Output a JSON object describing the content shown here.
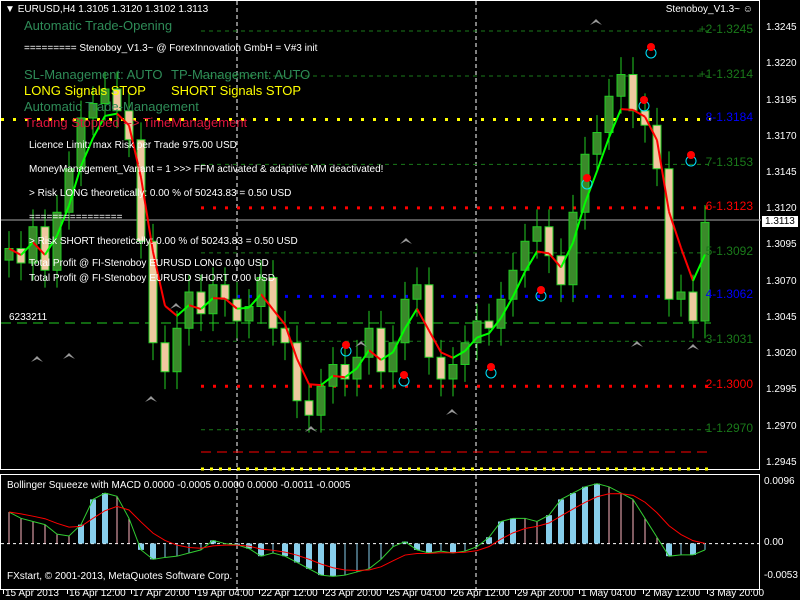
{
  "header": {
    "symbol": "EURUSD,H4",
    "ohlc": "1.3105 1.3120 1.3102 1.3113",
    "ea_name": "Stenoboy_V1.3~"
  },
  "overlay": {
    "trade_opening": "Automatic Trade-Opening",
    "init_line": "========= Stenoboy_V1.3~ @ ForexInnovation GmbH = V#3 init",
    "sl_mgmt": "SL-Management: AUTO",
    "tp_mgmt": "TP-Management: AUTO",
    "long_signals": "LONG Signals STOP",
    "short_signals": "SHORT Signals STOP",
    "trade_mgmt": "Automatic Trade-Management",
    "trading_stopped": "Trading Stopped --> TimeManagement",
    "licence": "Licence Limit: max Risk per Trade 975.00 USD",
    "mm_variant": "MoneyManagement_Variant = 1 >>> FFM activated & adaptive MM deactivated!",
    "risk_long": "> Risk LONG theoretically: 0.00 % of 50243.83 = 0.50 USD",
    "separator": "================",
    "risk_short": "> Risk SHORT theoretically:  0.00 % of 50243.83 = 0.50 USD",
    "profit_long": "Total Profit @ FI-Stenoboy EURUSD LONG   0.00 USD",
    "profit_short": "Total Profit @ FI-Stenoboy EURUSD SHORT 0.00 USD",
    "magic": "6233211"
  },
  "colors": {
    "bull": "#22cc22",
    "bear": "#f0c8a0",
    "green_text": "#2e8b57",
    "yellow": "#ffff00",
    "red": "#ff0000",
    "blue": "#0000ff",
    "macd_hist": "#87ceeb"
  },
  "levels": [
    {
      "label": "+2-1.3245",
      "price": 1.3245,
      "color": "#1a7a1a"
    },
    {
      "label": "+1-1.3214",
      "price": 1.3214,
      "color": "#1a7a1a"
    },
    {
      "label": "8-1.3184",
      "price": 1.3184,
      "color": "#0000ff",
      "line": "#ffff00"
    },
    {
      "label": "7-1.3153",
      "price": 1.3153,
      "color": "#1a7a1a"
    },
    {
      "label": "6-1.3123",
      "price": 1.3123,
      "color": "#ff0000"
    },
    {
      "label": "5-1.3092",
      "price": 1.3092,
      "color": "#1a7a1a"
    },
    {
      "label": "4-1.3062",
      "price": 1.3062,
      "color": "#0000ff"
    },
    {
      "label": "3-1.3031",
      "price": 1.3031,
      "color": "#1a7a1a"
    },
    {
      "label": "2-1.3000",
      "price": 1.3,
      "color": "#ff0000"
    },
    {
      "label": "1-1.2970",
      "price": 1.297,
      "color": "#1a7a1a"
    }
  ],
  "price_axis": {
    "ticks": [
      "1.3245",
      "1.3220",
      "1.3195",
      "1.3170",
      "1.3145",
      "1.3120",
      "1.3095",
      "1.3070",
      "1.3045",
      "1.3020",
      "1.2995",
      "1.2970",
      "1.2945"
    ],
    "current": "1.3113"
  },
  "time_axis": [
    "15 Apr 2013",
    "16 Apr 12:00",
    "17 Apr 20:00",
    "19 Apr 04:00",
    "22 Apr 12:00",
    "23 Apr 20:00",
    "25 Apr 04:00",
    "26 Apr 12:00",
    "29 Apr 20:00",
    "1 May 04:00",
    "2 May 12:00",
    "3 May 20:00"
  ],
  "chart_data": {
    "type": "candlestick",
    "closes": [
      1.3095,
      1.3085,
      1.311,
      1.308,
      1.312,
      1.315,
      1.3185,
      1.3195,
      1.3205,
      1.319,
      1.317,
      1.31,
      1.303,
      1.301,
      1.304,
      1.3065,
      1.305,
      1.307,
      1.306,
      1.3045,
      1.3055,
      1.3075,
      1.304,
      1.303,
      1.299,
      1.298,
      1.3,
      1.3015,
      1.3005,
      1.302,
      1.304,
      1.301,
      1.303,
      1.306,
      1.307,
      1.302,
      1.3005,
      1.3015,
      1.303,
      1.3045,
      1.304,
      1.306,
      1.308,
      1.31,
      1.311,
      1.309,
      1.307,
      1.312,
      1.316,
      1.3175,
      1.32,
      1.3215,
      1.319,
      1.318,
      1.315,
      1.306,
      1.3065,
      1.3045,
      1.3113
    ],
    "ylim": [
      1.2945,
      1.3245
    ]
  },
  "macd": {
    "title": "Bollinger Squeeze with MACD 0.0000 -0.0005 0.0000 0.0000 -0.0011 -0.0005",
    "copyright": "FXstart, © 2001-2013, MetaQuotes Software Corp.",
    "ticks": [
      "0.0096",
      "0.00",
      "-0.0053"
    ],
    "ylim": [
      -0.0053,
      0.0096
    ],
    "values": [
      0.005,
      0.004,
      0.0035,
      0.003,
      0.0015,
      0.0012,
      0.003,
      0.007,
      0.008,
      0.0075,
      0.004,
      -0.001,
      -0.0025,
      -0.0022,
      -0.002,
      -0.0015,
      -0.001,
      0.0005,
      0.0,
      -0.0002,
      -0.0008,
      -0.002,
      -0.0015,
      -0.002,
      -0.003,
      -0.004,
      -0.005,
      -0.0052,
      -0.005,
      -0.0045,
      -0.004,
      -0.0025,
      -0.0005,
      0.0003,
      -0.001,
      -0.0015,
      -0.0012,
      -0.0015,
      -0.0012,
      -0.0005,
      0.001,
      0.0035,
      0.004,
      0.004,
      0.0035,
      0.0045,
      0.007,
      0.008,
      0.009,
      0.0095,
      0.009,
      0.008,
      0.007,
      0.004,
      0.001,
      -0.002,
      -0.0018,
      -0.0018,
      -0.001
    ]
  }
}
